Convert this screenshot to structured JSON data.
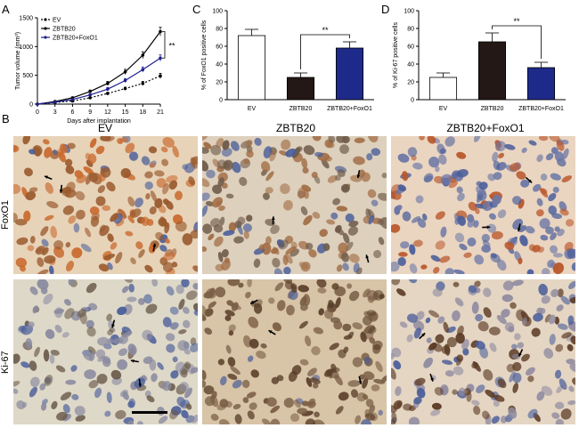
{
  "panels": {
    "A": "A",
    "B": "B",
    "C": "C",
    "D": "D"
  },
  "chart_data": [
    {
      "id": "A",
      "type": "line",
      "ylabel": "Tumor volume (mm³)",
      "xlabel": "Days after implantation",
      "x": [
        0,
        3,
        6,
        9,
        12,
        15,
        18,
        21
      ],
      "xticks": [
        "0",
        "3",
        "6",
        "9",
        "12",
        "15",
        "18",
        "21"
      ],
      "ylim": [
        0,
        1500
      ],
      "yticks": [
        "0",
        "500",
        "1000",
        "1500"
      ],
      "series": [
        {
          "name": "EV",
          "color": "#000000",
          "dash": true,
          "values": [
            0,
            30,
            55,
            110,
            185,
            270,
            360,
            490
          ],
          "errors": [
            0,
            8,
            10,
            15,
            20,
            25,
            35,
            45
          ]
        },
        {
          "name": "ZBTB20",
          "color": "#000000",
          "dash": false,
          "values": [
            0,
            45,
            110,
            220,
            360,
            560,
            850,
            1260
          ],
          "errors": [
            0,
            10,
            15,
            25,
            35,
            45,
            60,
            75
          ]
        },
        {
          "name": "ZBTB20+FoxO1",
          "color": "#1f1f8f",
          "dash": false,
          "values": [
            0,
            35,
            80,
            160,
            260,
            410,
            600,
            800
          ],
          "errors": [
            0,
            8,
            12,
            20,
            30,
            35,
            45,
            55
          ]
        }
      ],
      "significance": "**"
    },
    {
      "id": "C",
      "type": "bar",
      "ylabel": "% of FoxO1 positive cells",
      "categories": [
        "EV",
        "ZBTB20",
        "ZBTB20+FoxO1"
      ],
      "values": [
        72,
        25,
        58
      ],
      "errors": [
        7,
        5,
        7
      ],
      "colors": [
        "#ffffff",
        "#231815",
        "#1e2a8a"
      ],
      "ylim": [
        0,
        100
      ],
      "yticks": [
        "0",
        "20",
        "40",
        "60",
        "80",
        "100"
      ],
      "significance": "**"
    },
    {
      "id": "D",
      "type": "bar",
      "ylabel": "% of Ki-67 positive cells",
      "categories": [
        "EV",
        "ZBTB20",
        "ZBTB20+FoxO1"
      ],
      "values": [
        25,
        65,
        36
      ],
      "errors": [
        5,
        10,
        6
      ],
      "colors": [
        "#ffffff",
        "#231815",
        "#1e2a8a"
      ],
      "ylim": [
        0,
        100
      ],
      "yticks": [
        "0",
        "20",
        "40",
        "60",
        "80",
        "100"
      ],
      "significance": "**"
    }
  ],
  "micrographs": {
    "columns": [
      "EV",
      "ZBTB20",
      "ZBTB20+FoxO1"
    ],
    "rows": [
      "FoxO1",
      "Ki-67"
    ]
  }
}
